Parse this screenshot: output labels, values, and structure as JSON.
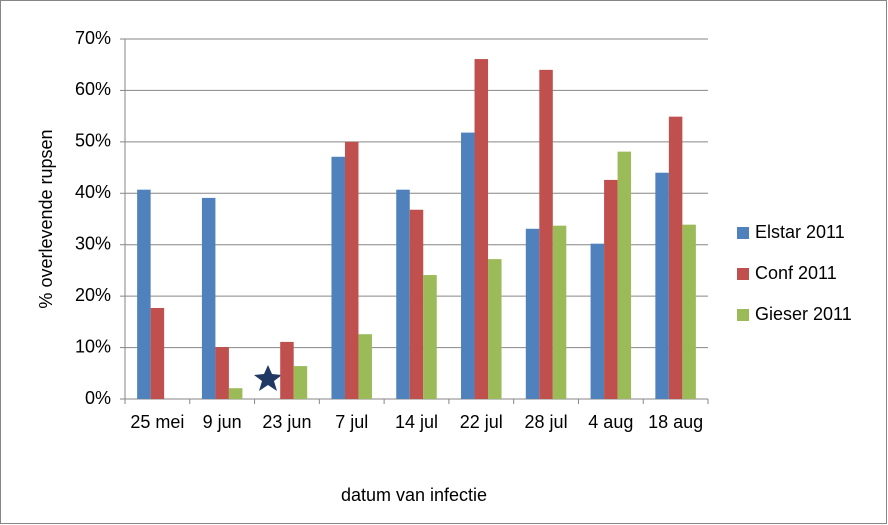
{
  "chart_data": {
    "type": "bar",
    "x_label": "datum van infectie",
    "y_label": "% overlevende rupsen",
    "categories": [
      "25 mei",
      "9 jun",
      "23 jun",
      "7 jul",
      "14 jul",
      "22 jul",
      "28 jul",
      "4 aug",
      "18 aug"
    ],
    "series": [
      {
        "name": "Elstar 2011",
        "color": "#4f81bd",
        "values": [
          40.7,
          39.1,
          null,
          47.1,
          40.7,
          51.8,
          33.1,
          30.2,
          44.0
        ]
      },
      {
        "name": "Conf 2011",
        "color": "#c0504d",
        "values": [
          17.7,
          10.1,
          11.1,
          50.0,
          36.8,
          66.1,
          64.0,
          42.6,
          54.9
        ]
      },
      {
        "name": "Gieser 2011",
        "color": "#9bbb59",
        "values": [
          null,
          2.1,
          6.4,
          12.6,
          24.1,
          27.2,
          33.7,
          48.1,
          33.9
        ]
      }
    ],
    "ylim": [
      0,
      70
    ],
    "yticks": [
      {
        "value": 0,
        "label": "0%"
      },
      {
        "value": 10,
        "label": "10%"
      },
      {
        "value": 20,
        "label": "20%"
      },
      {
        "value": 30,
        "label": "30%"
      },
      {
        "value": 40,
        "label": "40%"
      },
      {
        "value": 50,
        "label": "50%"
      },
      {
        "value": 60,
        "label": "60%"
      },
      {
        "value": 70,
        "label": "70%"
      }
    ],
    "grid": true,
    "legend": "right"
  }
}
